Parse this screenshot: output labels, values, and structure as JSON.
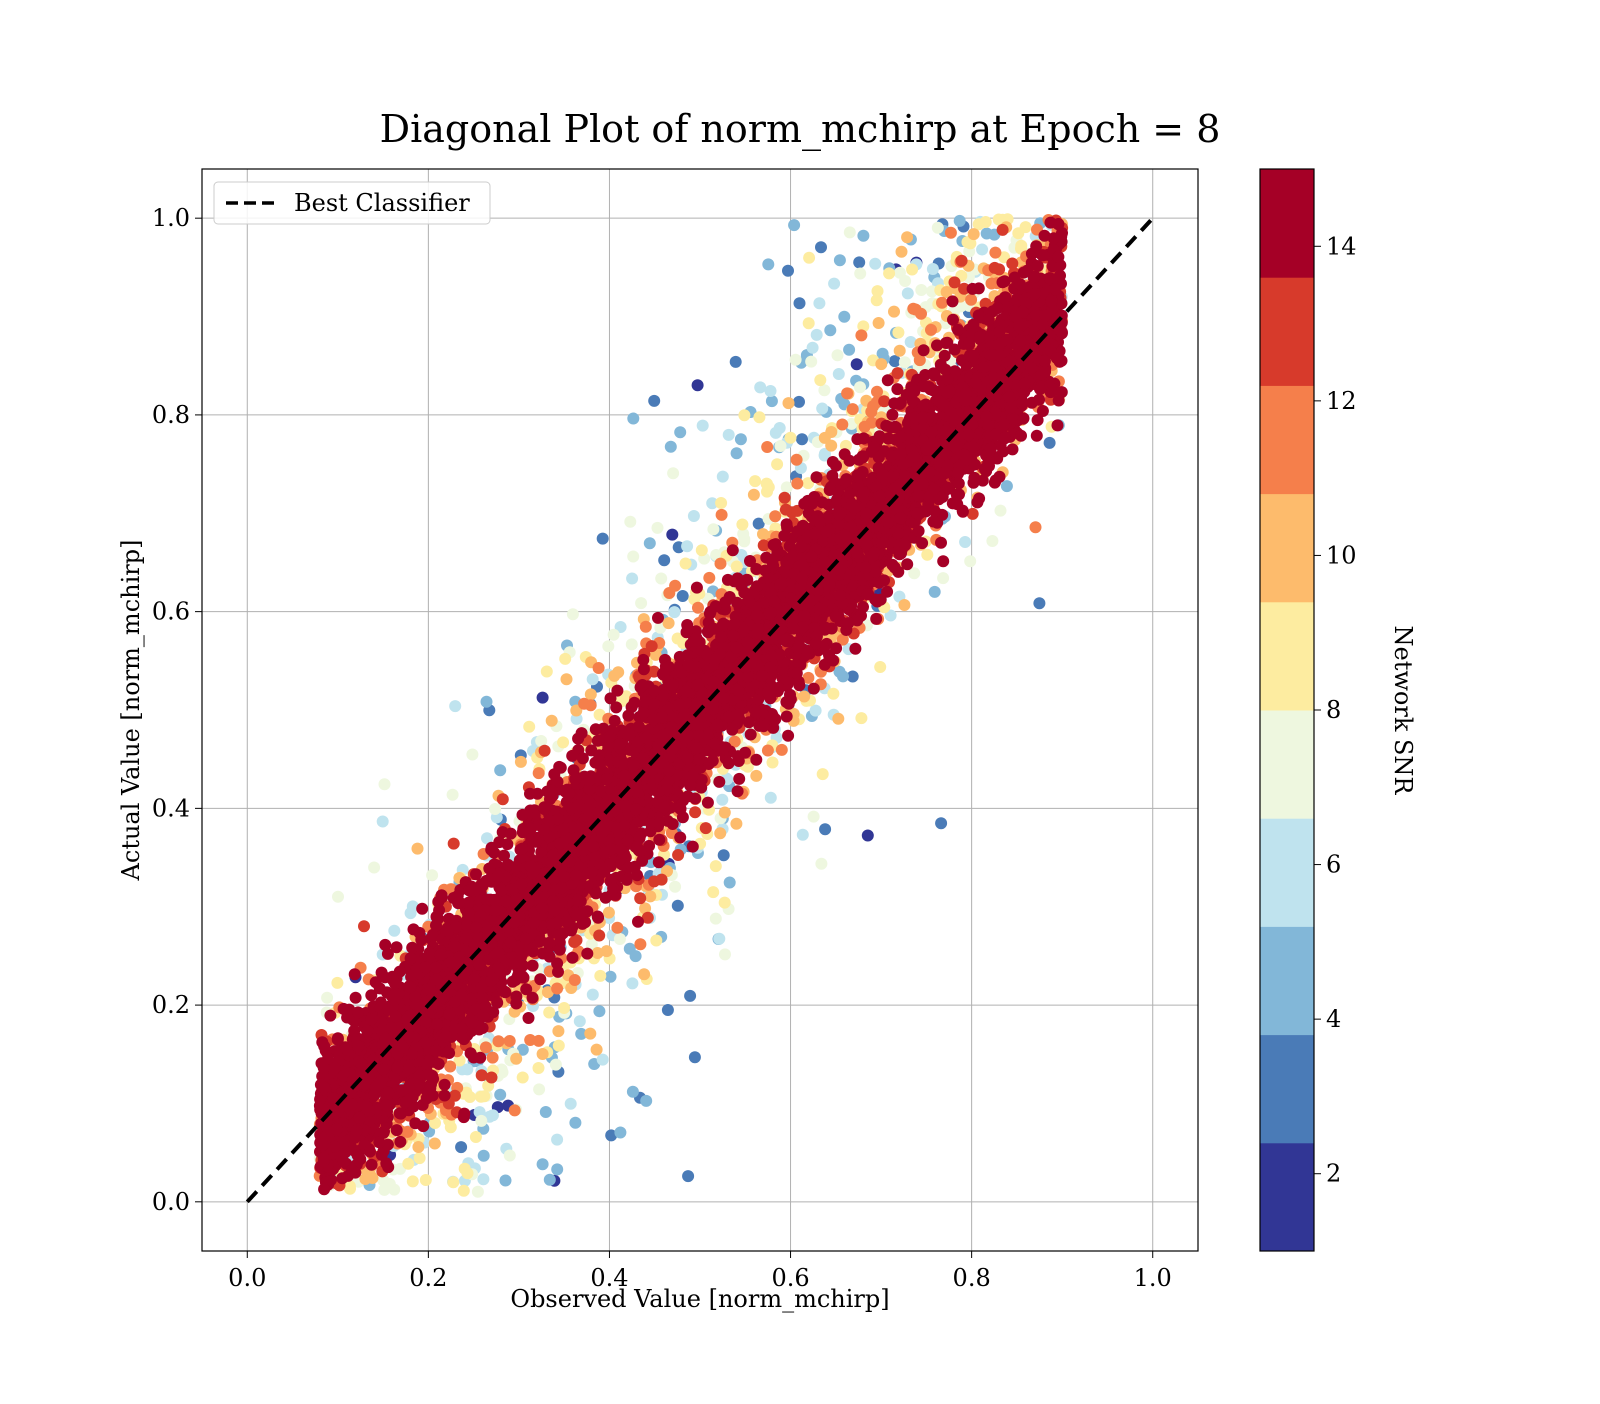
{
  "chart_data": {
    "type": "scatter",
    "title": "Diagonal Plot of norm_mchirp at Epoch = 8",
    "xlabel": "Observed Value [norm_mchirp]",
    "ylabel": "Actual Value [norm_mchirp]",
    "xlim": [
      -0.05,
      1.05
    ],
    "ylim": [
      -0.05,
      1.05
    ],
    "x_ticks": [
      {
        "value": 0.0,
        "label": "0.0"
      },
      {
        "value": 0.2,
        "label": "0.2"
      },
      {
        "value": 0.4,
        "label": "0.4"
      },
      {
        "value": 0.6,
        "label": "0.6"
      },
      {
        "value": 0.8,
        "label": "0.8"
      },
      {
        "value": 1.0,
        "label": "1.0"
      }
    ],
    "y_ticks": [
      {
        "value": 0.0,
        "label": "0.0"
      },
      {
        "value": 0.2,
        "label": "0.2"
      },
      {
        "value": 0.4,
        "label": "0.4"
      },
      {
        "value": 0.6,
        "label": "0.6"
      },
      {
        "value": 0.8,
        "label": "0.8"
      },
      {
        "value": 1.0,
        "label": "1.0"
      }
    ],
    "grid": true,
    "legend": {
      "placement": "upper-left",
      "entries": [
        {
          "label": "Best Classifier",
          "style": "dashed",
          "color": "#000000"
        }
      ]
    },
    "reference_line": {
      "name": "Best Classifier",
      "x": [
        0.0,
        1.0
      ],
      "y": [
        0.0,
        1.0
      ],
      "style": "dashed",
      "color": "#000000"
    },
    "colorbar": {
      "label": "Network SNR",
      "range": [
        1,
        15
      ],
      "ticks": [
        {
          "value": 2,
          "label": "2"
        },
        {
          "value": 4,
          "label": "4"
        },
        {
          "value": 6,
          "label": "6"
        },
        {
          "value": 8,
          "label": "8"
        },
        {
          "value": 10,
          "label": "10"
        },
        {
          "value": 12,
          "label": "12"
        },
        {
          "value": 14,
          "label": "14"
        }
      ],
      "bins": [
        {
          "from": 1.0,
          "to": 2.4,
          "color": "#313695"
        },
        {
          "from": 2.4,
          "to": 3.8,
          "color": "#4a7bb7"
        },
        {
          "from": 3.8,
          "to": 5.2,
          "color": "#82b7d8"
        },
        {
          "from": 5.2,
          "to": 6.6,
          "color": "#bfe3ee"
        },
        {
          "from": 6.6,
          "to": 8.0,
          "color": "#eef7df"
        },
        {
          "from": 8.0,
          "to": 9.4,
          "color": "#fdeca0"
        },
        {
          "from": 9.4,
          "to": 10.8,
          "color": "#fdbb6c"
        },
        {
          "from": 10.8,
          "to": 12.2,
          "color": "#f57f4b"
        },
        {
          "from": 12.2,
          "to": 13.6,
          "color": "#d73a2b"
        },
        {
          "from": 13.6,
          "to": 15.0,
          "color": "#a50026"
        }
      ]
    },
    "scatter_distribution": {
      "relation": "actual ≈ observed, spread widens at low SNR",
      "color_by": "Network SNR",
      "x_extent": [
        0.08,
        0.9
      ],
      "y_extent": [
        0.0,
        1.0
      ]
    }
  }
}
